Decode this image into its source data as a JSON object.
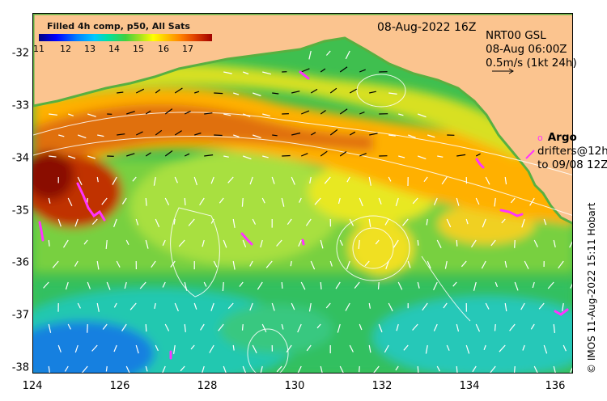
{
  "colorbar": {
    "title": "Filled 4h comp, p50, All Sats",
    "ticks": [
      "11",
      "12",
      "13",
      "14",
      "15",
      "16",
      "17"
    ]
  },
  "header": {
    "date": "08-Aug-2022 16Z"
  },
  "currents_legend": {
    "line1": "NRT00 GSL",
    "line2": "08-Aug 06:00Z",
    "line3": "0.5m/s (1kt 24h)"
  },
  "argo_legend": {
    "symbol": "o",
    "label": "Argo",
    "line2": "drifters@12h",
    "line3": "to 09/08 12Z"
  },
  "credit": "© IMOS 11-Aug-2022 15:11 Hobart",
  "axes": {
    "y_ticks": [
      "-32",
      "-33",
      "-34",
      "-35",
      "-36",
      "-37",
      "-38"
    ],
    "x_ticks": [
      "124",
      "126",
      "128",
      "130",
      "132",
      "134",
      "136"
    ],
    "lon_range": [
      124,
      136.5
    ],
    "lat_range": [
      -31.3,
      -38.1
    ]
  },
  "colors": {
    "land": "#fbc48f",
    "contour": "#ffffff",
    "arrow_north": "#000000",
    "arrow_south": "#ffffff",
    "argo": "#ff33ff"
  }
}
